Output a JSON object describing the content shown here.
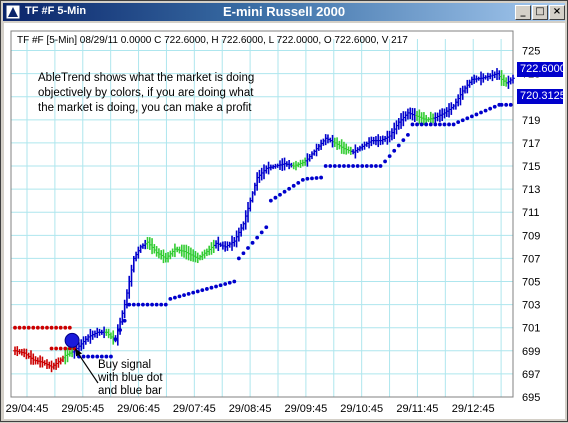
{
  "window": {
    "title": "TF #F 5-Min",
    "controls": {
      "minimize": "_",
      "maximize": "□",
      "close": "×"
    },
    "icon": "chart-app-icon"
  },
  "chart_title": "E-mini Russell 2000",
  "info_line": "TF #F [5-Min] 08/29/11  0.0000 C 722.6000, H 722.6000, L 722.0000, O 722.6000, V 217",
  "annotation": {
    "lines": [
      "AbleTrend shows what the market is doing",
      "objectively by colors, if you are doing what",
      "the market is doing, you can make a profit"
    ]
  },
  "buy_signal": {
    "lines": [
      "Buy signal",
      "with blue dot",
      "and blue bar"
    ]
  },
  "price_badges": {
    "last": "722.6000",
    "stop": "720.3125"
  },
  "colors": {
    "up": "#0000cc",
    "down": "#cc0000",
    "neutral": "#33cc33",
    "grid": "#aee6ee",
    "badge": "#0000cc"
  },
  "chart_data": {
    "type": "ohlc",
    "title": "E-mini Russell 2000",
    "ylim": [
      695,
      726
    ],
    "y_ticks": [
      695,
      697,
      699,
      701,
      703,
      705,
      707,
      709,
      711,
      713,
      715,
      717,
      719,
      721,
      723,
      725
    ],
    "x_tick_labels": [
      "29/04:45",
      "29/05:45",
      "29/06:45",
      "29/07:45",
      "29/08:45",
      "29/09:45",
      "29/10:45",
      "29/11:45",
      "29/12:45"
    ],
    "grid": true,
    "segments": [
      {
        "color": "red",
        "points": [
          [
            0,
            699.0
          ],
          [
            4,
            698.8
          ],
          [
            8,
            698.2
          ],
          [
            12,
            698.0
          ],
          [
            16,
            697.6
          ],
          [
            20,
            698.2
          ],
          [
            22,
            698.6
          ]
        ]
      },
      {
        "color": "green",
        "points": [
          [
            22,
            698.6
          ],
          [
            24,
            698.8
          ],
          [
            26,
            699.0
          ]
        ]
      },
      {
        "color": "blue",
        "points": [
          [
            26,
            699.0
          ],
          [
            29,
            699.6
          ],
          [
            32,
            700.2
          ],
          [
            36,
            700.6
          ],
          [
            40,
            700.6
          ]
        ]
      },
      {
        "color": "green",
        "points": [
          [
            40,
            700.6
          ],
          [
            42,
            700.2
          ],
          [
            44,
            700.0
          ]
        ]
      },
      {
        "color": "blue",
        "points": [
          [
            44,
            700.0
          ],
          [
            46,
            701.5
          ],
          [
            48,
            703.0
          ],
          [
            50,
            705.0
          ],
          [
            52,
            707.0
          ],
          [
            55,
            708.0
          ],
          [
            58,
            708.4
          ]
        ]
      },
      {
        "color": "green",
        "points": [
          [
            58,
            708.4
          ],
          [
            62,
            707.5
          ],
          [
            66,
            707.0
          ],
          [
            70,
            707.8
          ],
          [
            74,
            707.6
          ],
          [
            80,
            707.0
          ],
          [
            84,
            707.6
          ],
          [
            88,
            708.3
          ]
        ]
      },
      {
        "color": "blue",
        "points": [
          [
            88,
            708.3
          ],
          [
            92,
            708.0
          ],
          [
            96,
            708.5
          ],
          [
            100,
            710.0
          ],
          [
            103,
            712.0
          ],
          [
            106,
            714.0
          ],
          [
            110,
            714.8
          ],
          [
            114,
            715.0
          ],
          [
            118,
            715.2
          ],
          [
            122,
            715.0
          ]
        ]
      },
      {
        "color": "green",
        "points": [
          [
            122,
            715.0
          ],
          [
            126,
            715.3
          ],
          [
            128,
            715.6
          ]
        ]
      },
      {
        "color": "blue",
        "points": [
          [
            128,
            715.6
          ],
          [
            132,
            716.5
          ],
          [
            136,
            717.4
          ],
          [
            140,
            717.0
          ]
        ]
      },
      {
        "color": "green",
        "points": [
          [
            140,
            717.0
          ],
          [
            144,
            716.5
          ],
          [
            148,
            716.2
          ]
        ]
      },
      {
        "color": "blue",
        "points": [
          [
            148,
            716.2
          ],
          [
            152,
            716.7
          ],
          [
            156,
            717.2
          ],
          [
            160,
            717.2
          ],
          [
            164,
            717.6
          ],
          [
            168,
            718.8
          ],
          [
            172,
            719.6
          ],
          [
            176,
            719.3
          ]
        ]
      },
      {
        "color": "green",
        "points": [
          [
            176,
            719.3
          ],
          [
            180,
            719.0
          ],
          [
            184,
            719.2
          ]
        ]
      },
      {
        "color": "blue",
        "points": [
          [
            184,
            719.2
          ],
          [
            188,
            719.6
          ],
          [
            192,
            720.2
          ],
          [
            196,
            721.5
          ],
          [
            200,
            722.5
          ],
          [
            204,
            722.6
          ],
          [
            208,
            722.8
          ],
          [
            211,
            723.0
          ],
          [
            213,
            722.5
          ]
        ]
      },
      {
        "color": "green",
        "points": [
          [
            213,
            722.5
          ],
          [
            215,
            722.2
          ],
          [
            216,
            722.3
          ]
        ]
      },
      {
        "color": "blue",
        "points": [
          [
            216,
            722.3
          ],
          [
            218,
            722.6
          ]
        ]
      }
    ],
    "stop_dots": [
      {
        "color": "red",
        "from": 0,
        "to": 24,
        "start": 701.0,
        "end": 701.0
      },
      {
        "color": "red",
        "from": 16,
        "to": 26,
        "start": 699.2,
        "end": 699.2
      },
      {
        "color": "blue",
        "from": 28,
        "to": 42,
        "start": 698.5,
        "end": 698.5
      },
      {
        "color": "blue",
        "from": 44,
        "to": 48,
        "start": 700.0,
        "end": 701.6
      },
      {
        "color": "blue",
        "from": 50,
        "to": 66,
        "start": 703.0,
        "end": 703.0
      },
      {
        "color": "blue",
        "from": 68,
        "to": 96,
        "start": 703.5,
        "end": 705.0
      },
      {
        "color": "blue",
        "from": 98,
        "to": 110,
        "start": 707.0,
        "end": 709.7
      },
      {
        "color": "blue",
        "from": 112,
        "to": 126,
        "start": 712.0,
        "end": 713.8
      },
      {
        "color": "blue",
        "from": 128,
        "to": 134,
        "start": 713.9,
        "end": 714.0
      },
      {
        "color": "blue",
        "from": 136,
        "to": 160,
        "start": 715.0,
        "end": 715.0
      },
      {
        "color": "blue",
        "from": 162,
        "to": 172,
        "start": 715.4,
        "end": 717.7
      },
      {
        "color": "blue",
        "from": 174,
        "to": 192,
        "start": 718.6,
        "end": 718.6
      },
      {
        "color": "blue",
        "from": 194,
        "to": 212,
        "start": 718.8,
        "end": 720.3
      },
      {
        "color": "blue",
        "from": 213,
        "to": 218,
        "start": 720.3,
        "end": 720.3
      }
    ],
    "bars_count": 219
  }
}
